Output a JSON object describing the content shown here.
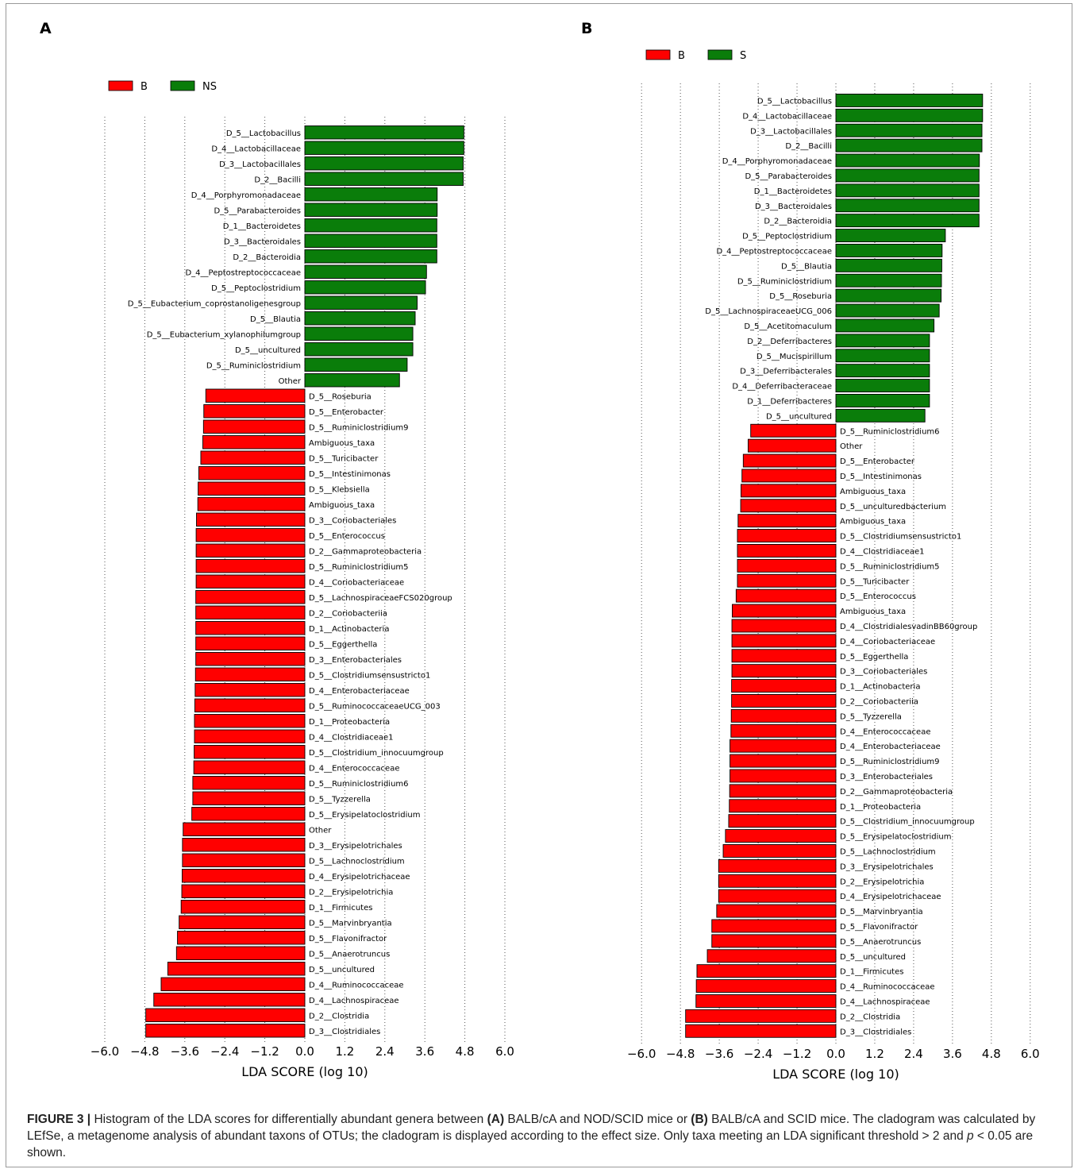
{
  "caption": {
    "label": "FIGURE 3 |",
    "t1": " Histogram of the LDA scores for differentially abundant genera between ",
    "a": "(A)",
    "t2": " BALB/cA and NOD/SCID mice or ",
    "b": "(B)",
    "t3": " BALB/cA and SCID mice. The cladogram was calculated by LEfSe, a metagenome analysis of abundant taxons of OTUs; the cladogram is displayed according to the effect size. Only taxa meeting an LDA significant threshold > 2 and ",
    "p": "p",
    "t4": " < 0.05 are shown."
  },
  "colors": {
    "positive": "#0a7d0a",
    "negative": "#ff0000",
    "grid": "#555555"
  },
  "chart_data": [
    {
      "type": "bar",
      "orientation": "horizontal",
      "panel_label": "A",
      "legend": [
        {
          "name": "B",
          "color": "#ff0000"
        },
        {
          "name": "NS",
          "color": "#0a7d0a"
        }
      ],
      "legend_position": "top-left",
      "xlabel": "LDA SCORE (log 10)",
      "xlim": [
        -6.0,
        6.0
      ],
      "xticks": [
        "−6.0",
        "−4.8",
        "−3.6",
        "−2.4",
        "−1.2",
        "0.0",
        "1.2",
        "2.4",
        "3.6",
        "4.8",
        "6.0"
      ],
      "grid": "vertical dotted",
      "bars": [
        {
          "label": "D_5__Lactobacillus",
          "value": 4.77,
          "group": "NS"
        },
        {
          "label": "D_4__Lactobacillaceae",
          "value": 4.77,
          "group": "NS"
        },
        {
          "label": "D_3__Lactobacillales",
          "value": 4.75,
          "group": "NS"
        },
        {
          "label": "D_2__Bacilli",
          "value": 4.75,
          "group": "NS"
        },
        {
          "label": "D_4__Porphyromonadaceae",
          "value": 3.97,
          "group": "NS"
        },
        {
          "label": "D_5__Parabacteroides",
          "value": 3.97,
          "group": "NS"
        },
        {
          "label": "D_1__Bacteroidetes",
          "value": 3.96,
          "group": "NS"
        },
        {
          "label": "D_3__Bacteroidales",
          "value": 3.96,
          "group": "NS"
        },
        {
          "label": "D_2__Bacteroidia",
          "value": 3.96,
          "group": "NS"
        },
        {
          "label": "D_4__Peptostreptococcaceae",
          "value": 3.65,
          "group": "NS"
        },
        {
          "label": "D_5__Peptoclostridium",
          "value": 3.62,
          "group": "NS"
        },
        {
          "label": "D_5__Eubacterium_coprostanoligenesgroup",
          "value": 3.37,
          "group": "NS"
        },
        {
          "label": "D_5__Blautia",
          "value": 3.31,
          "group": "NS"
        },
        {
          "label": "D_5__Eubacterium_xylanophilumgroup",
          "value": 3.24,
          "group": "NS"
        },
        {
          "label": "D_5__uncultured",
          "value": 3.24,
          "group": "NS"
        },
        {
          "label": "D_5__Ruminiclostridium",
          "value": 3.07,
          "group": "NS"
        },
        {
          "label": "Other",
          "value": 2.84,
          "group": "NS"
        },
        {
          "label": "D_5__Roseburia",
          "value": -2.97,
          "group": "B"
        },
        {
          "label": "D_5__Enterobacter",
          "value": -3.03,
          "group": "B"
        },
        {
          "label": "D_5__Ruminiclostridium9",
          "value": -3.04,
          "group": "B"
        },
        {
          "label": "Ambiguous_taxa",
          "value": -3.06,
          "group": "B"
        },
        {
          "label": "D_5__Turicibacter",
          "value": -3.12,
          "group": "B"
        },
        {
          "label": "D_5__Intestinimonas",
          "value": -3.18,
          "group": "B"
        },
        {
          "label": "D_5__Klebsiella",
          "value": -3.2,
          "group": "B"
        },
        {
          "label": "Ambiguous_taxa",
          "value": -3.21,
          "group": "B"
        },
        {
          "label": "D_3__Coriobacteriales",
          "value": -3.25,
          "group": "B"
        },
        {
          "label": "D_5__Enterococcus",
          "value": -3.26,
          "group": "B"
        },
        {
          "label": "D_2__Gammaproteobacteria",
          "value": -3.26,
          "group": "B"
        },
        {
          "label": "D_5__Ruminiclostridium5",
          "value": -3.26,
          "group": "B"
        },
        {
          "label": "D_4__Coriobacteriaceae",
          "value": -3.26,
          "group": "B"
        },
        {
          "label": "D_5__LachnospiraceaeFCS020group",
          "value": -3.27,
          "group": "B"
        },
        {
          "label": "D_2__Coriobacteriia",
          "value": -3.27,
          "group": "B"
        },
        {
          "label": "D_1__Actinobacteria",
          "value": -3.27,
          "group": "B"
        },
        {
          "label": "D_5__Eggerthella",
          "value": -3.27,
          "group": "B"
        },
        {
          "label": "D_3__Enterobacteriales",
          "value": -3.27,
          "group": "B"
        },
        {
          "label": "D_5__Clostridiumsensustricto1",
          "value": -3.28,
          "group": "B"
        },
        {
          "label": "D_4__Enterobacteriaceae",
          "value": -3.29,
          "group": "B"
        },
        {
          "label": "D_5__RuminococcaceaeUCG_003",
          "value": -3.3,
          "group": "B"
        },
        {
          "label": "D_1__Proteobacteria",
          "value": -3.31,
          "group": "B"
        },
        {
          "label": "D_4__Clostridiaceae1",
          "value": -3.31,
          "group": "B"
        },
        {
          "label": "D_5__Clostridium_innocuumgroup",
          "value": -3.32,
          "group": "B"
        },
        {
          "label": "D_4__Enterococcaceae",
          "value": -3.33,
          "group": "B"
        },
        {
          "label": "D_5__Ruminiclostridium6",
          "value": -3.36,
          "group": "B"
        },
        {
          "label": "D_5__Tyzzerella",
          "value": -3.36,
          "group": "B"
        },
        {
          "label": "D_5__Erysipelatoclostridium",
          "value": -3.39,
          "group": "B"
        },
        {
          "label": "Other",
          "value": -3.65,
          "group": "B"
        },
        {
          "label": "D_3__Erysipelotrichales",
          "value": -3.67,
          "group": "B"
        },
        {
          "label": "D_5__Lachnoclostridium",
          "value": -3.67,
          "group": "B"
        },
        {
          "label": "D_4__Erysipelotrichaceae",
          "value": -3.68,
          "group": "B"
        },
        {
          "label": "D_2__Erysipelotrichia",
          "value": -3.69,
          "group": "B"
        },
        {
          "label": "D_1__Firmicutes",
          "value": -3.71,
          "group": "B"
        },
        {
          "label": "D_5__Marvinbryantia",
          "value": -3.77,
          "group": "B"
        },
        {
          "label": "D_5__Flavonifractor",
          "value": -3.82,
          "group": "B"
        },
        {
          "label": "D_5__Anaerotruncus",
          "value": -3.85,
          "group": "B"
        },
        {
          "label": "D_5__uncultured",
          "value": -4.11,
          "group": "B"
        },
        {
          "label": "D_4__Ruminococcaceae",
          "value": -4.31,
          "group": "B"
        },
        {
          "label": "D_4__Lachnospiraceae",
          "value": -4.53,
          "group": "B"
        },
        {
          "label": "D_2__Clostridia",
          "value": -4.77,
          "group": "B"
        },
        {
          "label": "D_3__Clostridiales",
          "value": -4.77,
          "group": "B"
        }
      ]
    },
    {
      "type": "bar",
      "orientation": "horizontal",
      "panel_label": "B",
      "legend": [
        {
          "name": "B",
          "color": "#ff0000"
        },
        {
          "name": "S",
          "color": "#0a7d0a"
        }
      ],
      "legend_position": "top-left",
      "xlabel": "LDA SCORE (log 10)",
      "xlim": [
        -6.0,
        6.0
      ],
      "xticks": [
        "−6.0",
        "−4.8",
        "−3.6",
        "−2.4",
        "−1.2",
        "0.0",
        "1.2",
        "2.4",
        "3.6",
        "4.8",
        "6.0"
      ],
      "grid": "vertical dotted",
      "bars": [
        {
          "label": "D_5__Lactobacillus",
          "value": 4.53,
          "group": "S"
        },
        {
          "label": "D_4__Lactobacillaceae",
          "value": 4.53,
          "group": "S"
        },
        {
          "label": "D_3__Lactobacillales",
          "value": 4.51,
          "group": "S"
        },
        {
          "label": "D_2__Bacilli",
          "value": 4.51,
          "group": "S"
        },
        {
          "label": "D_4__Porphyromonadaceae",
          "value": 4.43,
          "group": "S"
        },
        {
          "label": "D_5__Parabacteroides",
          "value": 4.42,
          "group": "S"
        },
        {
          "label": "D_1__Bacteroidetes",
          "value": 4.42,
          "group": "S"
        },
        {
          "label": "D_3__Bacteroidales",
          "value": 4.42,
          "group": "S"
        },
        {
          "label": "D_2__Bacteroidia",
          "value": 4.42,
          "group": "S"
        },
        {
          "label": "D_5__Peptoclostridium",
          "value": 3.38,
          "group": "S"
        },
        {
          "label": "D_4__Peptostreptococcaceae",
          "value": 3.28,
          "group": "S"
        },
        {
          "label": "D_5__Blautia",
          "value": 3.27,
          "group": "S"
        },
        {
          "label": "D_5__Ruminiclostridium",
          "value": 3.26,
          "group": "S"
        },
        {
          "label": "D_5__Roseburia",
          "value": 3.25,
          "group": "S"
        },
        {
          "label": "D_5__LachnospiraceaeUCG_006",
          "value": 3.19,
          "group": "S"
        },
        {
          "label": "D_5__Acetitomaculum",
          "value": 3.03,
          "group": "S"
        },
        {
          "label": "D_2__Deferribacteres",
          "value": 2.89,
          "group": "S"
        },
        {
          "label": "D_5__Mucispirillum",
          "value": 2.89,
          "group": "S"
        },
        {
          "label": "D_3__Deferribacterales",
          "value": 2.89,
          "group": "S"
        },
        {
          "label": "D_4__Deferribacteraceae",
          "value": 2.89,
          "group": "S"
        },
        {
          "label": "D_1__Deferribacteres",
          "value": 2.89,
          "group": "S"
        },
        {
          "label": "D_5__uncultured",
          "value": 2.75,
          "group": "S"
        },
        {
          "label": "D_5__Ruminiclostridium6",
          "value": -2.63,
          "group": "B"
        },
        {
          "label": "Other",
          "value": -2.71,
          "group": "B"
        },
        {
          "label": "D_5__Enterobacter",
          "value": -2.86,
          "group": "B"
        },
        {
          "label": "D_5__Intestinimonas",
          "value": -2.9,
          "group": "B"
        },
        {
          "label": "Ambiguous_taxa",
          "value": -2.93,
          "group": "B"
        },
        {
          "label": "D_5__unculturedbacterium",
          "value": -2.94,
          "group": "B"
        },
        {
          "label": "Ambiguous_taxa",
          "value": -3.02,
          "group": "B"
        },
        {
          "label": "D_5__Clostridiumsensustricto1",
          "value": -3.04,
          "group": "B"
        },
        {
          "label": "D_4__Clostridiaceae1",
          "value": -3.04,
          "group": "B"
        },
        {
          "label": "D_5__Ruminiclostridium5",
          "value": -3.04,
          "group": "B"
        },
        {
          "label": "D_5__Turicibacter",
          "value": -3.04,
          "group": "B"
        },
        {
          "label": "D_5__Enterococcus",
          "value": -3.08,
          "group": "B"
        },
        {
          "label": "Ambiguous_taxa",
          "value": -3.2,
          "group": "B"
        },
        {
          "label": "D_4__ClostridialesvadinBB60group",
          "value": -3.21,
          "group": "B"
        },
        {
          "label": "D_4__Coriobacteriaceae",
          "value": -3.21,
          "group": "B"
        },
        {
          "label": "D_5__Eggerthella",
          "value": -3.21,
          "group": "B"
        },
        {
          "label": "D_3__Coriobacteriales",
          "value": -3.21,
          "group": "B"
        },
        {
          "label": "D_1__Actinobacteria",
          "value": -3.22,
          "group": "B"
        },
        {
          "label": "D_2__Coriobacteriia",
          "value": -3.22,
          "group": "B"
        },
        {
          "label": "D_5__Tyzzerella",
          "value": -3.23,
          "group": "B"
        },
        {
          "label": "D_4__Enterococcaceae",
          "value": -3.24,
          "group": "B"
        },
        {
          "label": "D_4__Enterobacteriaceae",
          "value": -3.27,
          "group": "B"
        },
        {
          "label": "D_5__Ruminiclostridium9",
          "value": -3.27,
          "group": "B"
        },
        {
          "label": "D_3__Enterobacteriales",
          "value": -3.27,
          "group": "B"
        },
        {
          "label": "D_2__Gammaproteobacteria",
          "value": -3.28,
          "group": "B"
        },
        {
          "label": "D_1__Proteobacteria",
          "value": -3.29,
          "group": "B"
        },
        {
          "label": "D_5__Clostridium_innocuumgroup",
          "value": -3.31,
          "group": "B"
        },
        {
          "label": "D_5__Erysipelatoclostridium",
          "value": -3.41,
          "group": "B"
        },
        {
          "label": "D_5__Lachnoclostridium",
          "value": -3.48,
          "group": "B"
        },
        {
          "label": "D_3__Erysipelotrichales",
          "value": -3.62,
          "group": "B"
        },
        {
          "label": "D_2__Erysipelotrichia",
          "value": -3.62,
          "group": "B"
        },
        {
          "label": "D_4__Erysipelotrichaceae",
          "value": -3.62,
          "group": "B"
        },
        {
          "label": "D_5__Marvinbryantia",
          "value": -3.68,
          "group": "B"
        },
        {
          "label": "D_5__Flavonifractor",
          "value": -3.83,
          "group": "B"
        },
        {
          "label": "D_5__Anaerotruncus",
          "value": -3.83,
          "group": "B"
        },
        {
          "label": "D_5__uncultured",
          "value": -3.97,
          "group": "B"
        },
        {
          "label": "D_1__Firmicutes",
          "value": -4.29,
          "group": "B"
        },
        {
          "label": "D_4__Ruminococcaceae",
          "value": -4.31,
          "group": "B"
        },
        {
          "label": "D_4__Lachnospiraceae",
          "value": -4.32,
          "group": "B"
        },
        {
          "label": "D_2__Clostridia",
          "value": -4.64,
          "group": "B"
        },
        {
          "label": "D_3__Clostridiales",
          "value": -4.64,
          "group": "B"
        }
      ]
    }
  ]
}
